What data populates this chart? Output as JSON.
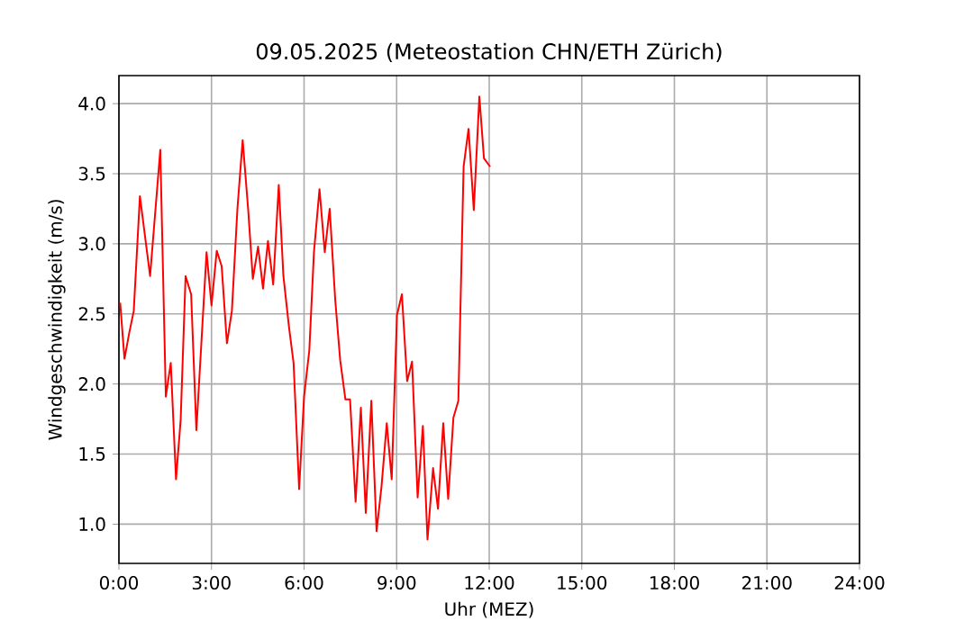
{
  "chart_data": {
    "type": "line",
    "title": "09.05.2025  (Meteostation CHN/ETH Zürich)",
    "xlabel": "Uhr (MEZ)",
    "ylabel": "Windgeschwindigkeit (m/s)",
    "x": [
      0.04,
      0.18,
      0.33,
      0.48,
      0.68,
      1.01,
      1.34,
      1.52,
      1.68,
      1.85,
      2.0,
      2.16,
      2.34,
      2.51,
      2.84,
      3.0,
      3.17,
      3.33,
      3.5,
      3.66,
      3.84,
      4.01,
      4.19,
      4.34,
      4.51,
      4.67,
      4.83,
      5.0,
      5.18,
      5.33,
      5.51,
      5.66,
      5.84,
      6.0,
      6.17,
      6.32,
      6.5,
      6.67,
      6.83,
      7.01,
      7.17,
      7.34,
      7.49,
      7.67,
      7.84,
      8.0,
      8.18,
      8.35,
      8.51,
      8.68,
      8.84,
      9.01,
      9.17,
      9.34,
      9.5,
      9.68,
      9.85,
      10.0,
      10.18,
      10.34,
      10.51,
      10.67,
      10.84,
      11.0,
      11.17,
      11.33,
      11.5,
      11.68,
      11.83,
      12.03
    ],
    "series": [
      {
        "color": "#ff0000",
        "values": [
          2.58,
          2.18,
          2.36,
          2.52,
          3.34,
          2.77,
          3.67,
          1.91,
          2.15,
          1.32,
          1.74,
          2.77,
          2.64,
          1.67,
          2.94,
          2.56,
          2.95,
          2.84,
          2.29,
          2.52,
          3.25,
          3.74,
          3.24,
          2.75,
          2.98,
          2.68,
          3.02,
          2.71,
          3.42,
          2.77,
          2.41,
          2.15,
          1.25,
          1.91,
          2.24,
          2.94,
          3.39,
          2.94,
          3.25,
          2.6,
          2.17,
          1.89,
          1.89,
          1.16,
          1.83,
          1.08,
          1.88,
          0.95,
          1.27,
          1.72,
          1.32,
          2.49,
          2.64,
          2.02,
          2.16,
          1.19,
          1.7,
          0.89,
          1.4,
          1.11,
          1.72,
          1.18,
          1.76,
          1.88,
          3.55,
          3.82,
          3.24,
          4.05,
          3.61,
          3.55
        ]
      }
    ],
    "xlim": [
      0,
      24
    ],
    "xticks": [
      {
        "value": 0,
        "label": "0:00"
      },
      {
        "value": 3,
        "label": "3:00"
      },
      {
        "value": 6,
        "label": "6:00"
      },
      {
        "value": 9,
        "label": "9:00"
      },
      {
        "value": 12,
        "label": "12:00"
      },
      {
        "value": 15,
        "label": "15:00"
      },
      {
        "value": 18,
        "label": "18:00"
      },
      {
        "value": 21,
        "label": "21:00"
      },
      {
        "value": 24,
        "label": "24:00"
      }
    ],
    "ylim": [
      0.72,
      4.2
    ],
    "yticks": [
      {
        "value": 1,
        "label": "1.0"
      },
      1.5,
      {
        "value": 2,
        "label": "2.0"
      },
      2.5,
      {
        "value": 3,
        "label": "3.0"
      },
      3.5,
      {
        "value": 4,
        "label": "4.0"
      }
    ],
    "grid": true,
    "marker": "none",
    "line_style": "solid"
  }
}
